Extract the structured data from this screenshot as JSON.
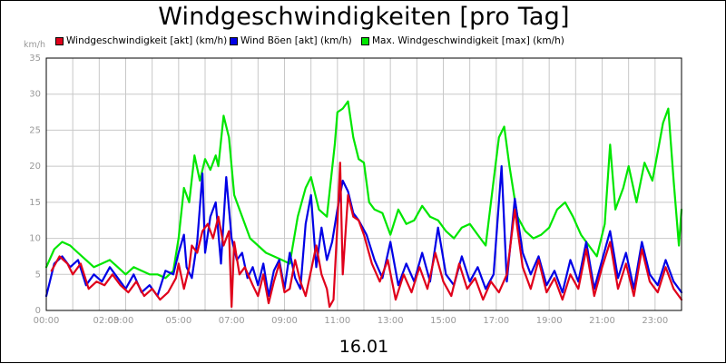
{
  "chart_data": {
    "type": "line",
    "title": "Windgeschwindigkeiten [pro Tag]",
    "xlabel": "16.01",
    "ylabel": "km/h",
    "ylim": [
      0,
      35
    ],
    "yticks": [
      0,
      5,
      10,
      15,
      20,
      25,
      30,
      35
    ],
    "x_range_hours": [
      0,
      24
    ],
    "x_tick_labels": [
      "00:00",
      "02:00",
      "03:00",
      "05:00",
      "07:00",
      "09:00",
      "11:00",
      "13:00",
      "15:00",
      "17:00",
      "19:00",
      "21:00",
      "23:00"
    ],
    "grid": true,
    "legend_position": "top",
    "series": [
      {
        "name": "Windgeschwindigkeit [akt] (km/h)",
        "color": "#e0001b",
        "points": [
          [
            0.2,
            5.5
          ],
          [
            0.5,
            7.5
          ],
          [
            0.8,
            6.5
          ],
          [
            1.0,
            5.0
          ],
          [
            1.3,
            6.5
          ],
          [
            1.6,
            3.0
          ],
          [
            1.9,
            4.0
          ],
          [
            2.2,
            3.5
          ],
          [
            2.5,
            5.0
          ],
          [
            2.8,
            3.5
          ],
          [
            3.1,
            2.5
          ],
          [
            3.4,
            4.0
          ],
          [
            3.7,
            2.0
          ],
          [
            4.0,
            3.0
          ],
          [
            4.3,
            1.5
          ],
          [
            4.6,
            2.5
          ],
          [
            4.9,
            4.5
          ],
          [
            5.0,
            6.5
          ],
          [
            5.2,
            3.0
          ],
          [
            5.4,
            6.0
          ],
          [
            5.5,
            9.0
          ],
          [
            5.7,
            8.0
          ],
          [
            5.9,
            11.0
          ],
          [
            6.1,
            12.0
          ],
          [
            6.3,
            10.0
          ],
          [
            6.5,
            13.0
          ],
          [
            6.7,
            9.0
          ],
          [
            6.9,
            11.0
          ],
          [
            7.0,
            0.5
          ],
          [
            7.1,
            9.5
          ],
          [
            7.3,
            5.0
          ],
          [
            7.5,
            6.0
          ],
          [
            7.8,
            3.5
          ],
          [
            8.0,
            2.0
          ],
          [
            8.2,
            5.0
          ],
          [
            8.4,
            1.0
          ],
          [
            8.6,
            4.0
          ],
          [
            8.8,
            6.5
          ],
          [
            9.0,
            2.5
          ],
          [
            9.2,
            3.0
          ],
          [
            9.4,
            7.0
          ],
          [
            9.6,
            4.0
          ],
          [
            9.8,
            2.0
          ],
          [
            10.0,
            5.5
          ],
          [
            10.2,
            9.0
          ],
          [
            10.4,
            5.0
          ],
          [
            10.6,
            3.0
          ],
          [
            10.7,
            0.5
          ],
          [
            10.85,
            1.5
          ],
          [
            11.0,
            12.0
          ],
          [
            11.1,
            20.5
          ],
          [
            11.2,
            5.0
          ],
          [
            11.4,
            16.0
          ],
          [
            11.6,
            13.0
          ],
          [
            11.8,
            12.5
          ],
          [
            12.0,
            10.5
          ],
          [
            12.3,
            6.5
          ],
          [
            12.6,
            4.0
          ],
          [
            12.9,
            7.0
          ],
          [
            13.2,
            1.5
          ],
          [
            13.5,
            5.0
          ],
          [
            13.8,
            2.5
          ],
          [
            14.1,
            6.0
          ],
          [
            14.4,
            3.0
          ],
          [
            14.7,
            8.0
          ],
          [
            15.0,
            4.0
          ],
          [
            15.3,
            2.0
          ],
          [
            15.6,
            6.5
          ],
          [
            15.9,
            3.0
          ],
          [
            16.2,
            4.5
          ],
          [
            16.5,
            1.5
          ],
          [
            16.8,
            4.0
          ],
          [
            17.1,
            2.5
          ],
          [
            17.4,
            5.0
          ],
          [
            17.7,
            14.0
          ],
          [
            18.0,
            6.0
          ],
          [
            18.3,
            3.0
          ],
          [
            18.6,
            7.0
          ],
          [
            18.9,
            2.5
          ],
          [
            19.2,
            4.5
          ],
          [
            19.5,
            1.5
          ],
          [
            19.8,
            5.0
          ],
          [
            20.1,
            3.0
          ],
          [
            20.4,
            8.5
          ],
          [
            20.7,
            2.0
          ],
          [
            21.0,
            6.0
          ],
          [
            21.3,
            9.5
          ],
          [
            21.6,
            3.0
          ],
          [
            21.9,
            6.5
          ],
          [
            22.2,
            2.0
          ],
          [
            22.5,
            8.5
          ],
          [
            22.8,
            4.0
          ],
          [
            23.1,
            2.5
          ],
          [
            23.4,
            6.0
          ],
          [
            23.7,
            3.0
          ],
          [
            24.0,
            1.5
          ]
        ]
      },
      {
        "name": "Wind Böen [akt] (km/h)",
        "color": "#0000e6",
        "points": [
          [
            0.0,
            2.0
          ],
          [
            0.3,
            6.5
          ],
          [
            0.6,
            7.5
          ],
          [
            0.9,
            6.0
          ],
          [
            1.2,
            7.0
          ],
          [
            1.5,
            3.5
          ],
          [
            1.8,
            5.0
          ],
          [
            2.1,
            4.0
          ],
          [
            2.4,
            6.0
          ],
          [
            2.7,
            4.5
          ],
          [
            3.0,
            3.0
          ],
          [
            3.3,
            5.0
          ],
          [
            3.6,
            2.5
          ],
          [
            3.9,
            3.5
          ],
          [
            4.2,
            2.0
          ],
          [
            4.5,
            5.5
          ],
          [
            4.8,
            5.0
          ],
          [
            5.0,
            8.0
          ],
          [
            5.2,
            10.5
          ],
          [
            5.3,
            6.0
          ],
          [
            5.5,
            4.5
          ],
          [
            5.7,
            9.5
          ],
          [
            5.9,
            19.0
          ],
          [
            6.0,
            8.0
          ],
          [
            6.2,
            13.0
          ],
          [
            6.4,
            15.0
          ],
          [
            6.6,
            6.5
          ],
          [
            6.8,
            18.5
          ],
          [
            7.0,
            10.0
          ],
          [
            7.2,
            7.0
          ],
          [
            7.4,
            8.0
          ],
          [
            7.6,
            4.5
          ],
          [
            7.8,
            6.0
          ],
          [
            8.0,
            3.5
          ],
          [
            8.2,
            6.5
          ],
          [
            8.4,
            2.0
          ],
          [
            8.6,
            5.5
          ],
          [
            8.8,
            7.0
          ],
          [
            9.0,
            3.0
          ],
          [
            9.2,
            8.0
          ],
          [
            9.4,
            4.5
          ],
          [
            9.6,
            3.0
          ],
          [
            9.8,
            12.0
          ],
          [
            10.0,
            16.0
          ],
          [
            10.2,
            6.0
          ],
          [
            10.4,
            11.5
          ],
          [
            10.6,
            7.0
          ],
          [
            10.8,
            9.5
          ],
          [
            11.0,
            14.0
          ],
          [
            11.2,
            18.0
          ],
          [
            11.4,
            16.5
          ],
          [
            11.6,
            13.5
          ],
          [
            11.8,
            12.5
          ],
          [
            12.1,
            10.5
          ],
          [
            12.4,
            7.0
          ],
          [
            12.7,
            4.5
          ],
          [
            13.0,
            9.5
          ],
          [
            13.3,
            3.5
          ],
          [
            13.6,
            6.5
          ],
          [
            13.9,
            4.0
          ],
          [
            14.2,
            8.0
          ],
          [
            14.5,
            4.0
          ],
          [
            14.8,
            11.5
          ],
          [
            15.1,
            5.0
          ],
          [
            15.4,
            3.5
          ],
          [
            15.7,
            7.5
          ],
          [
            16.0,
            4.0
          ],
          [
            16.3,
            6.0
          ],
          [
            16.6,
            3.0
          ],
          [
            16.9,
            5.0
          ],
          [
            17.2,
            20.0
          ],
          [
            17.4,
            4.0
          ],
          [
            17.7,
            15.5
          ],
          [
            18.0,
            8.0
          ],
          [
            18.3,
            5.0
          ],
          [
            18.6,
            7.5
          ],
          [
            18.9,
            3.5
          ],
          [
            19.2,
            5.5
          ],
          [
            19.5,
            2.5
          ],
          [
            19.8,
            7.0
          ],
          [
            20.1,
            4.0
          ],
          [
            20.4,
            9.5
          ],
          [
            20.7,
            3.0
          ],
          [
            21.0,
            7.0
          ],
          [
            21.3,
            11.0
          ],
          [
            21.6,
            4.5
          ],
          [
            21.9,
            8.0
          ],
          [
            22.2,
            3.0
          ],
          [
            22.5,
            9.5
          ],
          [
            22.8,
            5.0
          ],
          [
            23.1,
            3.5
          ],
          [
            23.4,
            7.0
          ],
          [
            23.7,
            4.0
          ],
          [
            24.0,
            2.5
          ]
        ]
      },
      {
        "name": "Max. Windgeschwindigkeit [max] (km/h)",
        "color": "#00e600",
        "points": [
          [
            0.0,
            6.0
          ],
          [
            0.3,
            8.5
          ],
          [
            0.6,
            9.5
          ],
          [
            0.9,
            9.0
          ],
          [
            1.2,
            8.0
          ],
          [
            1.5,
            7.0
          ],
          [
            1.8,
            6.0
          ],
          [
            2.1,
            6.5
          ],
          [
            2.4,
            7.0
          ],
          [
            2.7,
            6.0
          ],
          [
            3.0,
            5.0
          ],
          [
            3.3,
            6.0
          ],
          [
            3.6,
            5.5
          ],
          [
            3.9,
            5.0
          ],
          [
            4.2,
            5.0
          ],
          [
            4.5,
            4.5
          ],
          [
            4.8,
            5.5
          ],
          [
            5.0,
            10.0
          ],
          [
            5.2,
            17.0
          ],
          [
            5.4,
            15.0
          ],
          [
            5.6,
            21.5
          ],
          [
            5.8,
            18.0
          ],
          [
            6.0,
            21.0
          ],
          [
            6.2,
            19.5
          ],
          [
            6.4,
            21.5
          ],
          [
            6.5,
            20.0
          ],
          [
            6.7,
            27.0
          ],
          [
            6.9,
            24.0
          ],
          [
            7.1,
            16.0
          ],
          [
            7.3,
            14.0
          ],
          [
            7.5,
            12.0
          ],
          [
            7.7,
            10.0
          ],
          [
            8.0,
            9.0
          ],
          [
            8.3,
            8.0
          ],
          [
            8.6,
            7.5
          ],
          [
            8.9,
            7.0
          ],
          [
            9.2,
            6.5
          ],
          [
            9.5,
            13.0
          ],
          [
            9.8,
            17.0
          ],
          [
            10.0,
            18.5
          ],
          [
            10.3,
            14.0
          ],
          [
            10.6,
            13.0
          ],
          [
            10.9,
            23.0
          ],
          [
            11.0,
            27.5
          ],
          [
            11.2,
            28.0
          ],
          [
            11.4,
            29.0
          ],
          [
            11.6,
            24.0
          ],
          [
            11.8,
            21.0
          ],
          [
            12.0,
            20.5
          ],
          [
            12.2,
            15.0
          ],
          [
            12.4,
            14.0
          ],
          [
            12.7,
            13.5
          ],
          [
            13.0,
            10.5
          ],
          [
            13.3,
            14.0
          ],
          [
            13.6,
            12.0
          ],
          [
            13.9,
            12.5
          ],
          [
            14.2,
            14.5
          ],
          [
            14.5,
            13.0
          ],
          [
            14.8,
            12.5
          ],
          [
            15.1,
            11.0
          ],
          [
            15.4,
            10.0
          ],
          [
            15.7,
            11.5
          ],
          [
            16.0,
            12.0
          ],
          [
            16.3,
            10.5
          ],
          [
            16.6,
            9.0
          ],
          [
            16.9,
            18.0
          ],
          [
            17.1,
            24.0
          ],
          [
            17.3,
            25.5
          ],
          [
            17.5,
            20.0
          ],
          [
            17.8,
            13.0
          ],
          [
            18.1,
            11.0
          ],
          [
            18.4,
            10.0
          ],
          [
            18.7,
            10.5
          ],
          [
            19.0,
            11.5
          ],
          [
            19.3,
            14.0
          ],
          [
            19.6,
            15.0
          ],
          [
            19.9,
            13.0
          ],
          [
            20.2,
            10.5
          ],
          [
            20.5,
            9.0
          ],
          [
            20.8,
            7.5
          ],
          [
            21.1,
            12.0
          ],
          [
            21.3,
            23.0
          ],
          [
            21.5,
            14.0
          ],
          [
            21.8,
            17.0
          ],
          [
            22.0,
            20.0
          ],
          [
            22.3,
            15.0
          ],
          [
            22.6,
            20.5
          ],
          [
            22.9,
            18.0
          ],
          [
            23.1,
            22.0
          ],
          [
            23.3,
            26.0
          ],
          [
            23.5,
            28.0
          ],
          [
            23.7,
            18.0
          ],
          [
            23.9,
            9.0
          ],
          [
            24.0,
            14.0
          ]
        ]
      }
    ]
  }
}
